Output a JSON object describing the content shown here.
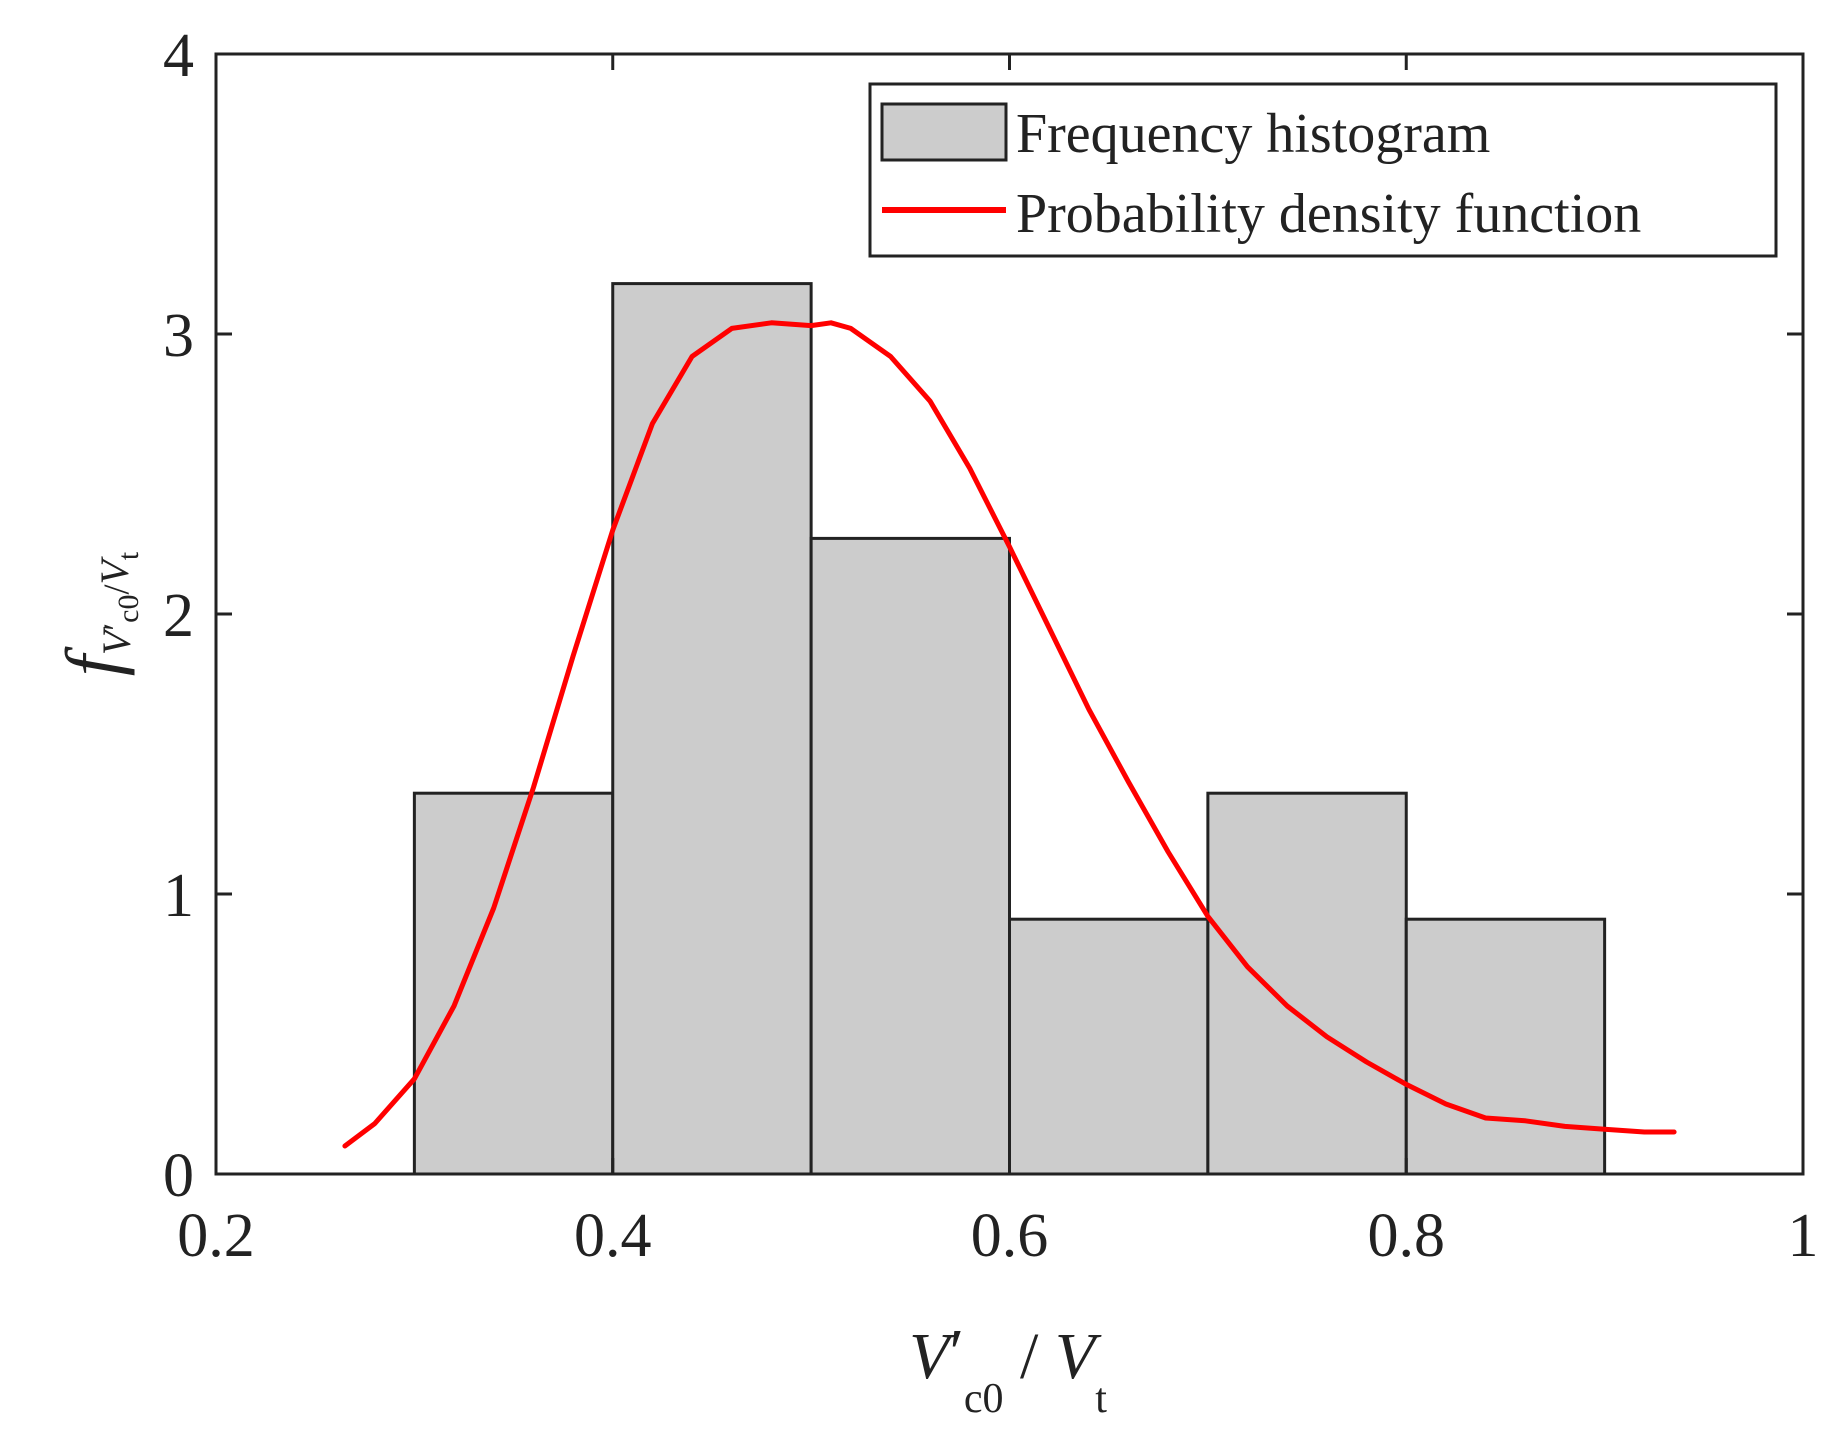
{
  "chart_data": {
    "type": "bar",
    "subtype": "histogram_with_pdf",
    "title": "",
    "xlabel": "V'c0 / Vt",
    "ylabel": "f V'c0/Vt",
    "xlabel_parts": {
      "symbol1": "V",
      "prime": "′",
      "sub1": "c0",
      "sep": " / ",
      "symbol2": "V",
      "sub2": "t"
    },
    "ylabel_parts": {
      "f": "f",
      "symbol1": "V",
      "prime": "′",
      "sub1": "c0",
      "slash": "/",
      "symbol2": "V",
      "sub2": "t"
    },
    "xlim": [
      0.2,
      1.0
    ],
    "ylim": [
      0,
      4
    ],
    "x_ticks": [
      "0.2",
      "0.4",
      "0.6",
      "0.8",
      "1"
    ],
    "x_tick_values": [
      0.2,
      0.4,
      0.6,
      0.8,
      1.0
    ],
    "y_ticks": [
      "0",
      "1",
      "2",
      "3",
      "4"
    ],
    "y_tick_values": [
      0,
      1,
      2,
      3,
      4
    ],
    "bin_edges": [
      0.3,
      0.4,
      0.5,
      0.6,
      0.7,
      0.8,
      0.9
    ],
    "values": [
      1.36,
      3.18,
      2.27,
      0.91,
      1.36,
      0.91
    ],
    "pdf": {
      "name": "Probability density function",
      "x": [
        0.265,
        0.28,
        0.3,
        0.32,
        0.34,
        0.36,
        0.38,
        0.4,
        0.42,
        0.44,
        0.46,
        0.48,
        0.5,
        0.51,
        0.52,
        0.54,
        0.56,
        0.58,
        0.6,
        0.62,
        0.64,
        0.66,
        0.68,
        0.7,
        0.72,
        0.74,
        0.76,
        0.78,
        0.8,
        0.82,
        0.84,
        0.86,
        0.88,
        0.9,
        0.92,
        0.935
      ],
      "y": [
        0.1,
        0.18,
        0.34,
        0.6,
        0.95,
        1.38,
        1.85,
        2.3,
        2.68,
        2.92,
        3.02,
        3.04,
        3.03,
        3.04,
        3.02,
        2.92,
        2.76,
        2.52,
        2.24,
        1.95,
        1.66,
        1.4,
        1.15,
        0.92,
        0.74,
        0.6,
        0.49,
        0.4,
        0.32,
        0.25,
        0.2,
        0.19,
        0.17,
        0.16,
        0.15,
        0.15
      ]
    },
    "legend": {
      "position": "top-right",
      "entries": [
        {
          "label": "Frequency histogram",
          "kind": "patch"
        },
        {
          "label": "Probability density function",
          "kind": "line"
        }
      ]
    },
    "colors": {
      "bar_fill": "#cccccc",
      "bar_edge": "#222222",
      "pdf_line": "#ff0000",
      "axis": "#222222"
    }
  }
}
